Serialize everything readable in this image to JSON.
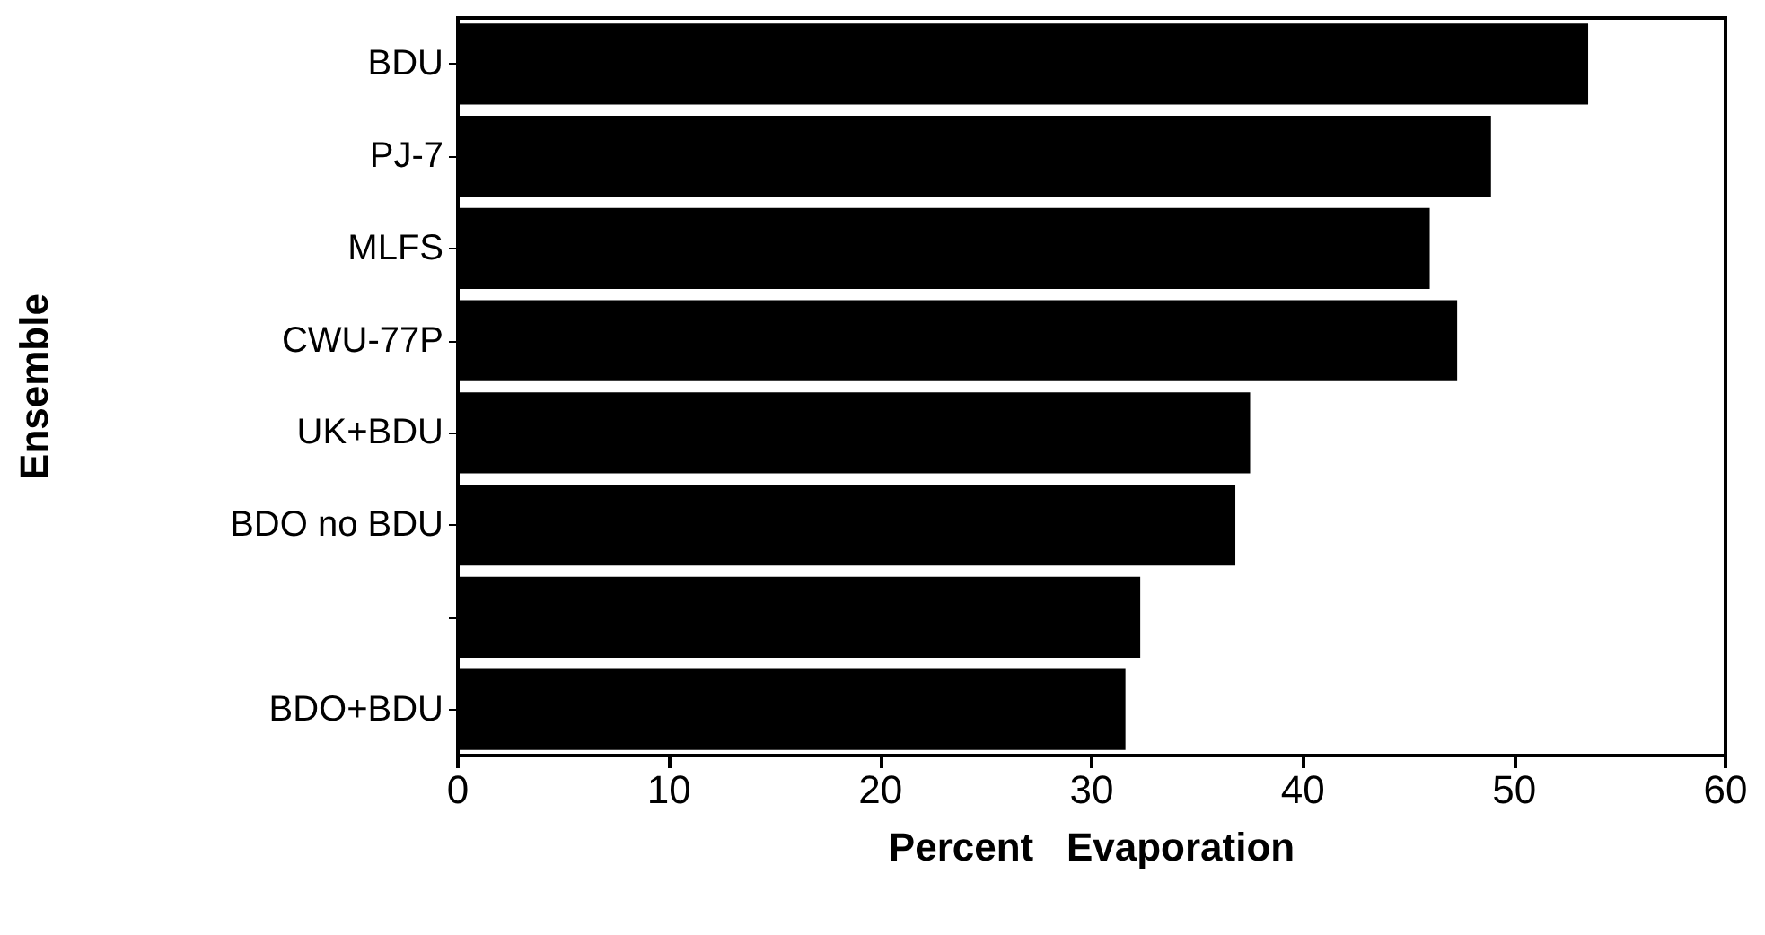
{
  "chart_data": {
    "type": "bar",
    "orientation": "horizontal",
    "xlabel": "Percent   Evaporation",
    "ylabel": "Ensemble",
    "categories": [
      "BDU",
      "PJ-7",
      "MLFS",
      "CWU-77P",
      "UK+BDU",
      "BDO no BDU",
      null,
      "BDO+BDU"
    ],
    "values": [
      53.5,
      48.9,
      46.0,
      47.3,
      37.5,
      36.8,
      32.3,
      31.6
    ],
    "color": "#000000",
    "xlim": [
      0,
      60
    ],
    "xticks": [
      0,
      10,
      20,
      30,
      40,
      50,
      60
    ]
  }
}
